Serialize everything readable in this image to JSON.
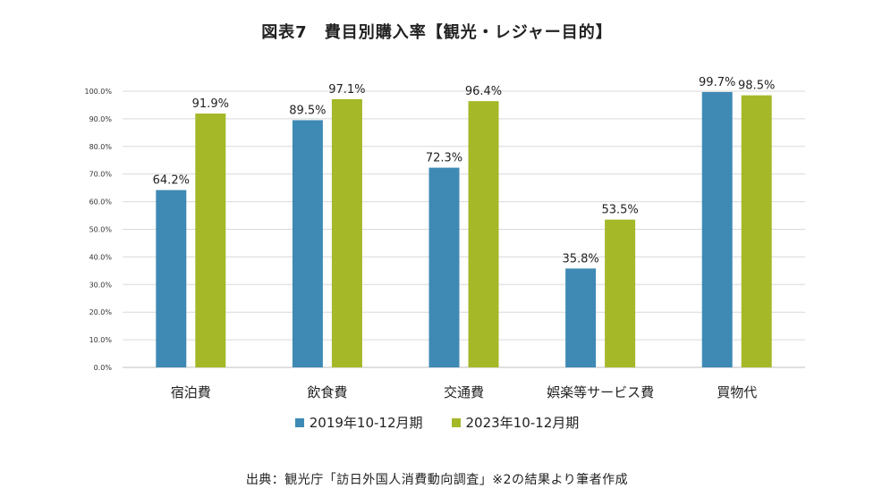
{
  "chart_data": {
    "type": "bar",
    "title": "図表7　費目別購入率【観光・レジャー目的】",
    "xlabel": "",
    "ylabel": "",
    "ylim": [
      0,
      100
    ],
    "yticks": [
      "0.0%",
      "10.0%",
      "20.0%",
      "30.0%",
      "40.0%",
      "50.0%",
      "60.0%",
      "70.0%",
      "80.0%",
      "90.0%",
      "100.0%"
    ],
    "grid": true,
    "legend_position": "bottom",
    "categories": [
      "宿泊費",
      "飲食費",
      "交通費",
      "娯楽等サービス費",
      "買物代"
    ],
    "series": [
      {
        "name": "2019年10-12月期",
        "color": "#3f8ab5",
        "values": [
          64.2,
          89.5,
          72.3,
          35.8,
          99.7
        ],
        "labels": [
          "64.2%",
          "89.5%",
          "72.3%",
          "35.8%",
          "99.7%"
        ]
      },
      {
        "name": "2023年10-12月期",
        "color": "#a5b828",
        "values": [
          91.9,
          97.1,
          96.4,
          53.5,
          98.5
        ],
        "labels": [
          "91.9%",
          "97.1%",
          "96.4%",
          "53.5%",
          "98.5%"
        ]
      }
    ]
  },
  "source": "出典：観光庁「訪日外国人消費動向調査」※2の結果より筆者作成"
}
